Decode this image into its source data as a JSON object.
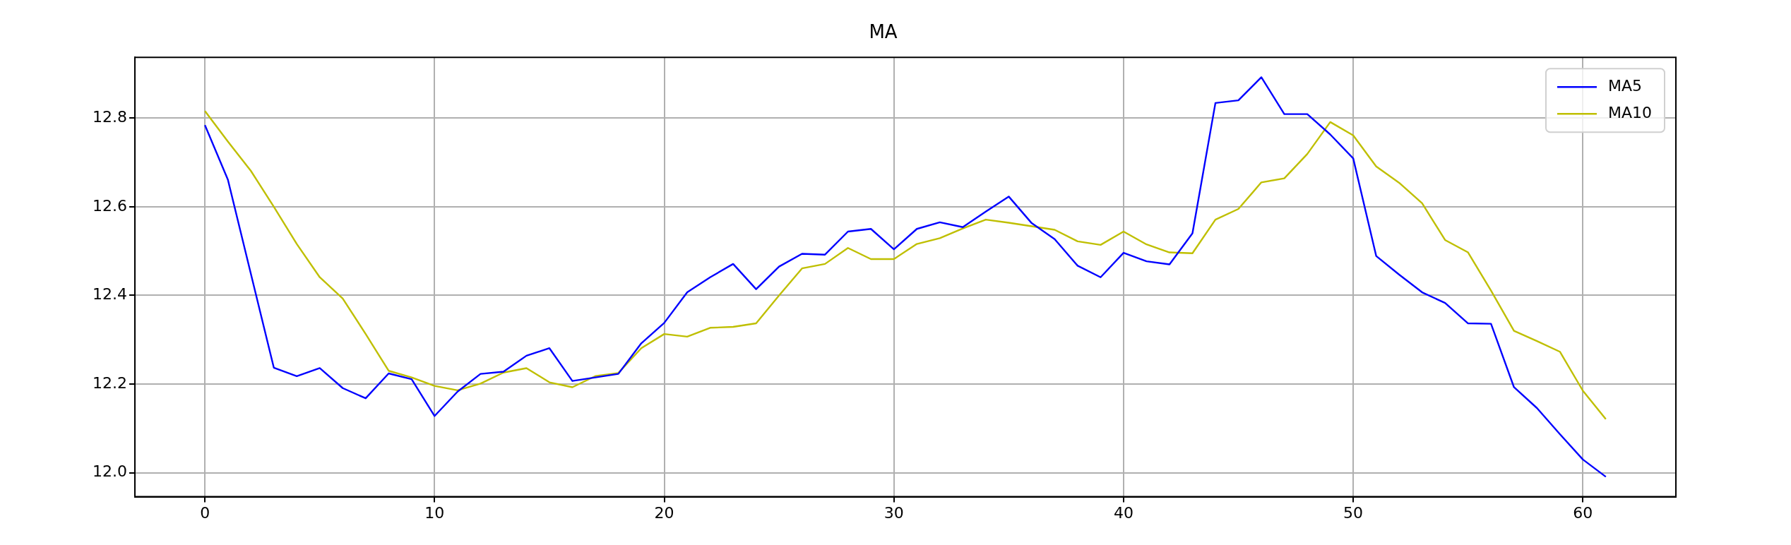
{
  "chart_data": {
    "type": "line",
    "title": "MA",
    "x": [
      0,
      1,
      2,
      3,
      4,
      5,
      6,
      7,
      8,
      9,
      10,
      11,
      12,
      13,
      14,
      15,
      16,
      17,
      18,
      19,
      20,
      21,
      22,
      23,
      24,
      25,
      26,
      27,
      28,
      29,
      30,
      31,
      32,
      33,
      34,
      35,
      36,
      37,
      38,
      39,
      40,
      41,
      42,
      43,
      44,
      45,
      46,
      47,
      48,
      49,
      50,
      51,
      52,
      53,
      54,
      55,
      56,
      57,
      58,
      59,
      60,
      61
    ],
    "series": [
      {
        "name": "MA5",
        "color": "#0000ff",
        "values": [
          12.784,
          12.661,
          12.449,
          12.237,
          12.218,
          12.236,
          12.191,
          12.168,
          12.224,
          12.211,
          12.128,
          12.183,
          12.223,
          12.228,
          12.264,
          12.281,
          12.207,
          12.215,
          12.223,
          12.292,
          12.338,
          12.407,
          12.441,
          12.471,
          12.414,
          12.465,
          12.494,
          12.492,
          12.544,
          12.55,
          12.504,
          12.55,
          12.565,
          12.554,
          12.589,
          12.623,
          12.563,
          12.527,
          12.467,
          12.441,
          12.496,
          12.477,
          12.47,
          12.54,
          12.834,
          12.84,
          12.892,
          12.809,
          12.809,
          12.763,
          12.709,
          12.489,
          12.447,
          12.407,
          12.383,
          12.337,
          12.336,
          12.193,
          12.146,
          12.087,
          12.03,
          11.991
        ]
      },
      {
        "name": "MA10",
        "color": "#bfbf00",
        "values": [
          12.816,
          12.747,
          12.681,
          12.6,
          12.516,
          12.441,
          12.393,
          12.313,
          12.23,
          12.215,
          12.196,
          12.186,
          12.201,
          12.226,
          12.236,
          12.204,
          12.193,
          12.218,
          12.225,
          12.281,
          12.313,
          12.307,
          12.327,
          12.329,
          12.337,
          12.4,
          12.461,
          12.471,
          12.507,
          12.482,
          12.482,
          12.516,
          12.529,
          12.551,
          12.571,
          12.564,
          12.556,
          12.548,
          12.522,
          12.514,
          12.544,
          12.515,
          12.497,
          12.495,
          12.571,
          12.595,
          12.655,
          12.664,
          12.719,
          12.791,
          12.761,
          12.691,
          12.654,
          12.608,
          12.525,
          12.497,
          12.411,
          12.32,
          12.297,
          12.273,
          12.185,
          12.121
        ]
      }
    ],
    "xlim": [
      -3.05,
      64.05
    ],
    "xticks": [
      0,
      10,
      20,
      30,
      40,
      50,
      60
    ],
    "ylim": [
      11.946,
      12.937
    ],
    "yticks": [
      {
        "value": 12.0,
        "label": "12.0"
      },
      {
        "value": 12.2,
        "label": "12.2"
      },
      {
        "value": 12.4,
        "label": "12.4"
      },
      {
        "value": 12.6,
        "label": "12.6"
      },
      {
        "value": 12.8,
        "label": "12.8"
      }
    ],
    "grid": true,
    "legend": "top right",
    "marker": "none",
    "line_style": "solid"
  }
}
